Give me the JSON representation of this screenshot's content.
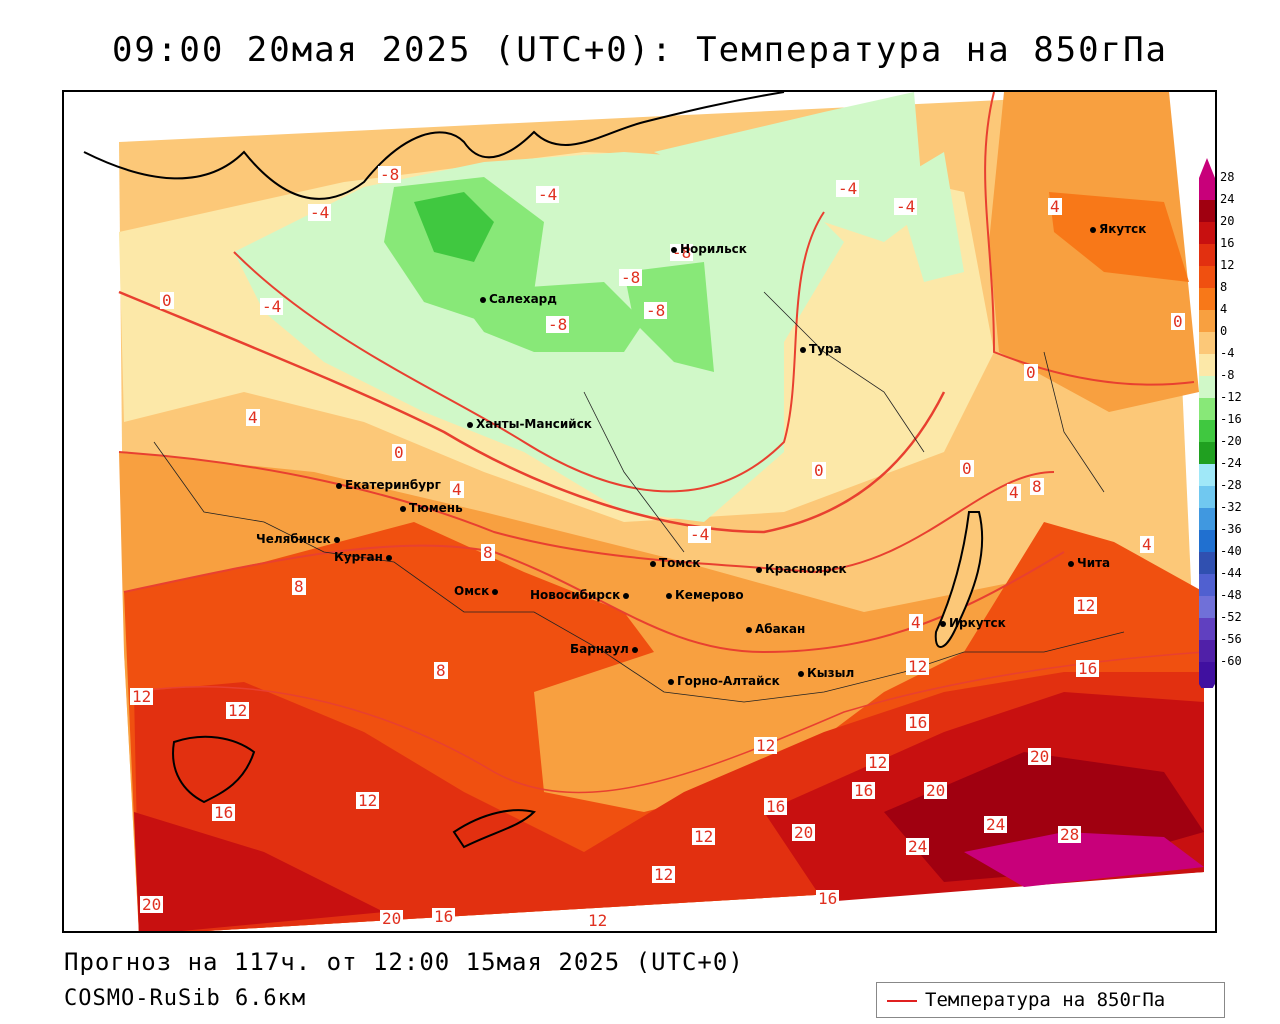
{
  "title": "09:00 20мая 2025 (UTC+0): Температура на 850гПа",
  "footer": {
    "forecast": "Прогноз на 117ч. от 12:00 15мая 2025 (UTC+0)",
    "model": "COSMO-RuSib 6.6км"
  },
  "legend": {
    "label": "Температура на 850гПа",
    "line_color": "#e02020"
  },
  "color_scale": {
    "ticks": [
      "28",
      "24",
      "20",
      "16",
      "12",
      "8",
      "4",
      "0",
      "-4",
      "-8",
      "-12",
      "-16",
      "-20",
      "-24",
      "-28",
      "-32",
      "-36",
      "-40",
      "-44",
      "-48",
      "-52",
      "-56",
      "-60"
    ],
    "colors": [
      "#c8007a",
      "#a00010",
      "#c81010",
      "#e23010",
      "#f05010",
      "#f87818",
      "#f8a040",
      "#fcc878",
      "#fce8a8",
      "#d0f8c8",
      "#88e878",
      "#40c840",
      "#20a020",
      "#a0e8f8",
      "#70c8f0",
      "#4098e0",
      "#2070d0",
      "#3050b0",
      "#5060d0",
      "#7070d8",
      "#6040c0",
      "#5020a8",
      "#4010a0"
    ]
  },
  "cities": [
    "Якутск",
    "Норильск",
    "Салехард",
    "Тура",
    "Ханты-Мансийск",
    "Екатеринбург",
    "Тюмень",
    "Челябинск",
    "Курган",
    "Омск",
    "Новосибирск",
    "Томск",
    "Кемерово",
    "Красноярск",
    "Барнаул",
    "Абакан",
    "Иркутск",
    "Чита",
    "Горно-Алтайск",
    "Кызыл"
  ],
  "contour_labels": [
    "-8",
    "-4",
    "-4",
    "-4",
    "-4",
    "-8",
    "-8",
    "-8",
    "-8",
    "0",
    "-4",
    "4",
    "4",
    "0",
    "0",
    "0",
    "0",
    "0",
    "4",
    "4",
    "8",
    "4",
    "8",
    "4",
    "8",
    "-4",
    "12",
    "12",
    "12",
    "8",
    "16",
    "12",
    "16",
    "12",
    "16",
    "20",
    "12",
    "16",
    "20",
    "24",
    "20",
    "28",
    "24",
    "12",
    "16",
    "16",
    "12",
    "12",
    "20",
    "20",
    "16",
    "12"
  ]
}
